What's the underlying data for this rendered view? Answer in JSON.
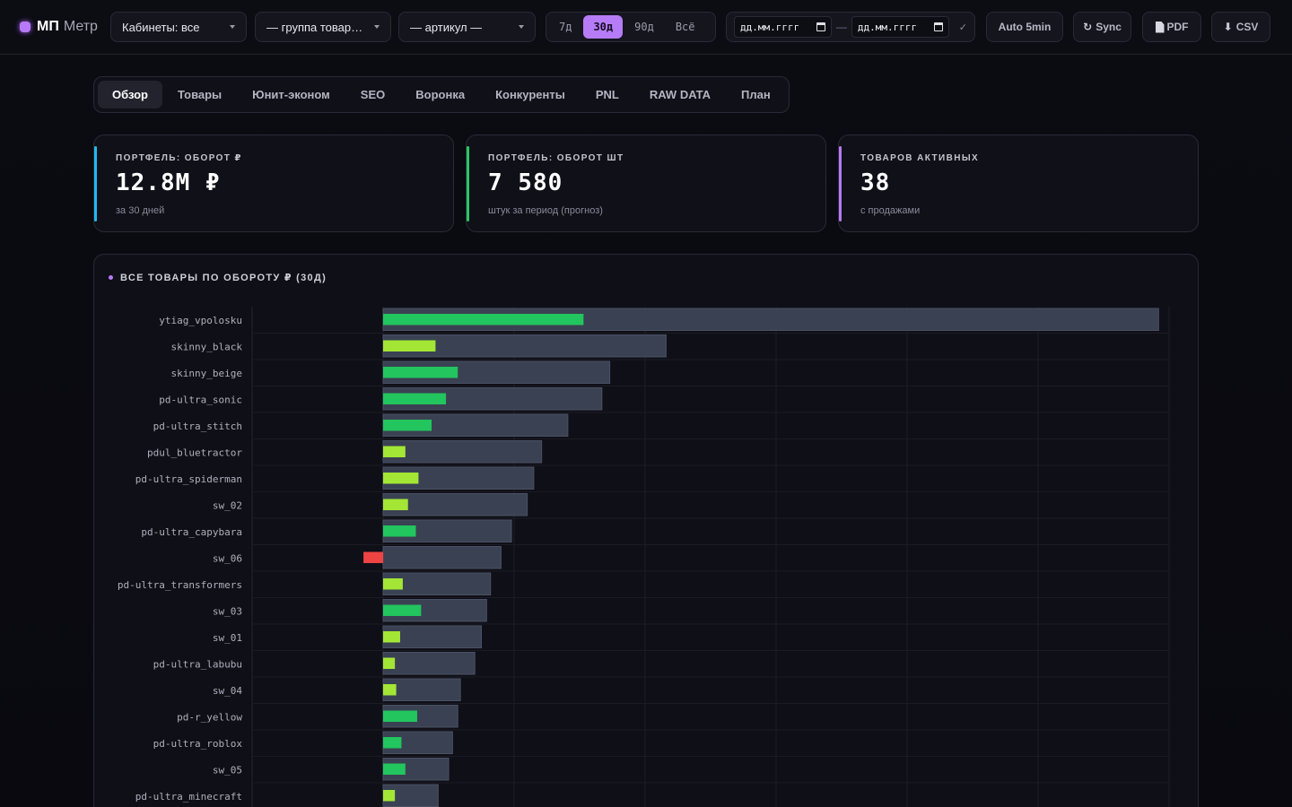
{
  "brand": {
    "primary": "МП",
    "secondary": "Метр"
  },
  "filters": {
    "cabinets": "Кабинеты: все",
    "group": "— группа товар…",
    "article": "— артикул —"
  },
  "periods": [
    {
      "label": "7д",
      "active": false
    },
    {
      "label": "30д",
      "active": true
    },
    {
      "label": "90д",
      "active": false
    },
    {
      "label": "Всё",
      "active": false
    }
  ],
  "date_range": {
    "from_placeholder": "дд.мм.гггг",
    "separator": "—",
    "to_placeholder": "дд.мм.гггг",
    "apply": "✓"
  },
  "toolbar": {
    "auto": "Auto 5min",
    "sync": "Sync",
    "sync_icon": "↻",
    "pdf": "PDF",
    "csv": "CSV",
    "csv_icon": "⬇"
  },
  "tabs": [
    {
      "label": "Обзор",
      "active": true
    },
    {
      "label": "Товары",
      "active": false
    },
    {
      "label": "Юнит-эконом",
      "active": false
    },
    {
      "label": "SEO",
      "active": false
    },
    {
      "label": "Воронка",
      "active": false
    },
    {
      "label": "Конкуренты",
      "active": false
    },
    {
      "label": "PNL",
      "active": false
    },
    {
      "label": "RAW DATA",
      "active": false
    },
    {
      "label": "План",
      "active": false
    }
  ],
  "kpis": [
    {
      "label": "Портфель: оборот ₽",
      "value": "12.8M ₽",
      "sub": "за 30 дней",
      "color": "#22b8f0"
    },
    {
      "label": "Портфель: оборот шт",
      "value": "7 580",
      "sub": "штук за период (прогноз)",
      "color": "#27c95f"
    },
    {
      "label": "Товаров активных",
      "value": "38",
      "sub": "с продажами",
      "color": "#b779f7"
    }
  ],
  "chart_panel": {
    "title": "ВСЕ ТОВАРЫ ПО ОБОРОТУ ₽ (30Д)"
  },
  "colors": {
    "revenue_bar": "#3a4152",
    "margin_high": "#22c55e",
    "margin_low": "#a3e635",
    "margin_negative": "#ef4444",
    "accent": "#b67cf7"
  },
  "chart_data": {
    "type": "bar",
    "orientation": "horizontal",
    "categories": [
      "ytiag_vpolosku",
      "skinny_black",
      "skinny_beige",
      "pd-ultra_sonic",
      "pd-ultra_stitch",
      "pdul_bluetractor",
      "pd-ultra_spiderman",
      "sw_02",
      "pd-ultra_capybara",
      "sw_06",
      "pd-ultra_transformers",
      "sw_03",
      "sw_01",
      "pd-ultra_labubu",
      "sw_04",
      "pd-r_yellow",
      "pd-ultra_roblox",
      "sw_05",
      "pd-ultra_minecraft"
    ],
    "series": [
      {
        "values": [
          5.92,
          2.16,
          1.73,
          1.67,
          1.41,
          1.21,
          1.15,
          1.1,
          0.98,
          0.9,
          0.82,
          0.79,
          0.75,
          0.7,
          0.59,
          0.57,
          0.53,
          0.5,
          0.42
        ]
      },
      {
        "values": [
          1.53,
          0.4,
          0.57,
          0.48,
          0.37,
          0.17,
          0.27,
          0.19,
          0.25,
          -0.15,
          0.15,
          0.29,
          0.13,
          0.09,
          0.1,
          0.26,
          0.14,
          0.17,
          0.09
        ],
        "tone": [
          "high",
          "low",
          "high",
          "high",
          "high",
          "low",
          "low",
          "low",
          "high",
          "negative",
          "low",
          "high",
          "low",
          "low",
          "low",
          "high",
          "high",
          "high",
          "low"
        ]
      }
    ],
    "xlim": [
      -1.0,
      6.0
    ],
    "grid": true,
    "legend": "none"
  }
}
